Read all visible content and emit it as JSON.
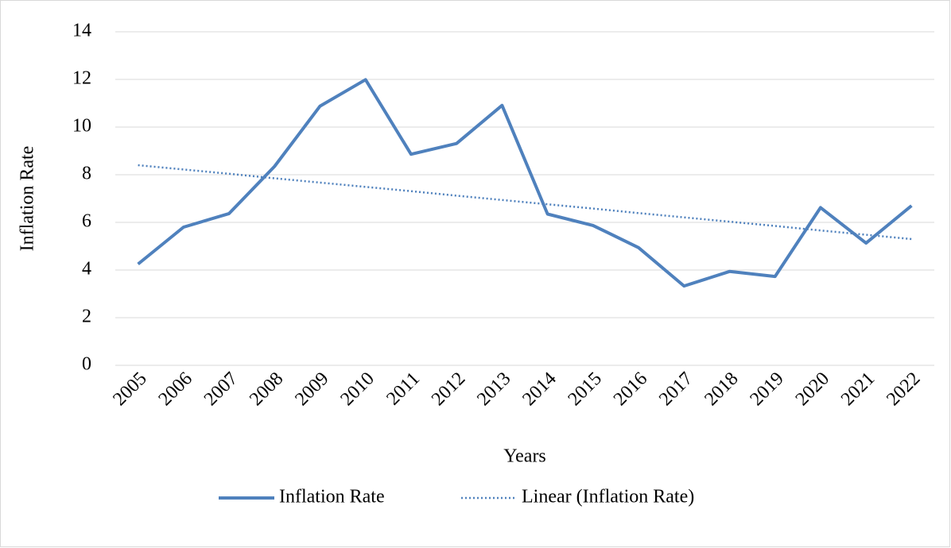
{
  "chart_data": {
    "type": "line",
    "x_label": "Years",
    "y_label": "Inflation Rate",
    "categories": [
      "2005",
      "2006",
      "2007",
      "2008",
      "2009",
      "2010",
      "2011",
      "2012",
      "2013",
      "2014",
      "2015",
      "2016",
      "2017",
      "2018",
      "2019",
      "2020",
      "2021",
      "2022"
    ],
    "series": [
      {
        "name": "Inflation Rate",
        "color": "#4f81bd",
        "style": "solid",
        "values": [
          4.25,
          5.8,
          6.37,
          8.35,
          10.88,
          11.99,
          8.86,
          9.31,
          10.91,
          6.35,
          5.87,
          4.94,
          3.33,
          3.94,
          3.73,
          6.62,
          5.13,
          6.7
        ]
      },
      {
        "name": "Linear (Inflation Rate)",
        "color": "#4f81bd",
        "style": "dotted",
        "values": [
          8.4,
          8.22,
          8.04,
          7.85,
          7.67,
          7.49,
          7.31,
          7.12,
          6.94,
          6.76,
          6.58,
          6.39,
          6.21,
          6.03,
          5.85,
          5.66,
          5.48,
          5.3
        ]
      }
    ],
    "ylim": [
      0,
      14
    ],
    "yticks": [
      0,
      2,
      4,
      6,
      8,
      10,
      12,
      14
    ],
    "grid": true,
    "legend": "bottom"
  }
}
